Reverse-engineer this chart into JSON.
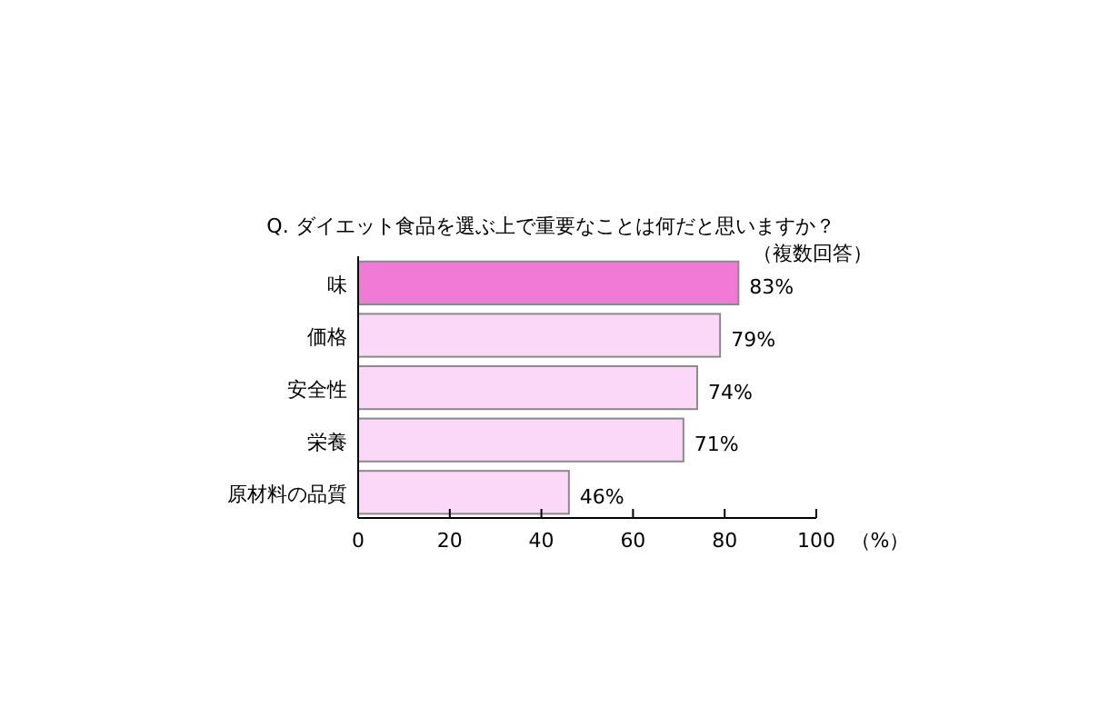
{
  "chart_data": {
    "type": "bar",
    "orientation": "horizontal",
    "title": "Q. ダイエット食品を選ぶ上で重要なことは何だと思いますか？",
    "subtitle": "（複数回答）",
    "xlabel": "（%）",
    "categories": [
      "味",
      "価格",
      "安全性",
      "栄養",
      "原材料の品質"
    ],
    "values": [
      83,
      79,
      74,
      71,
      46
    ],
    "colors": [
      "#f07ad6",
      "#fcd8f8",
      "#fcd8f8",
      "#fcd8f8",
      "#fcd8f8"
    ],
    "value_labels": [
      "83%",
      "79%",
      "74%",
      "71%",
      "46%"
    ],
    "xlim": [
      0,
      100
    ],
    "xticks": [
      0,
      20,
      40,
      60,
      80,
      100
    ],
    "grid": false
  }
}
